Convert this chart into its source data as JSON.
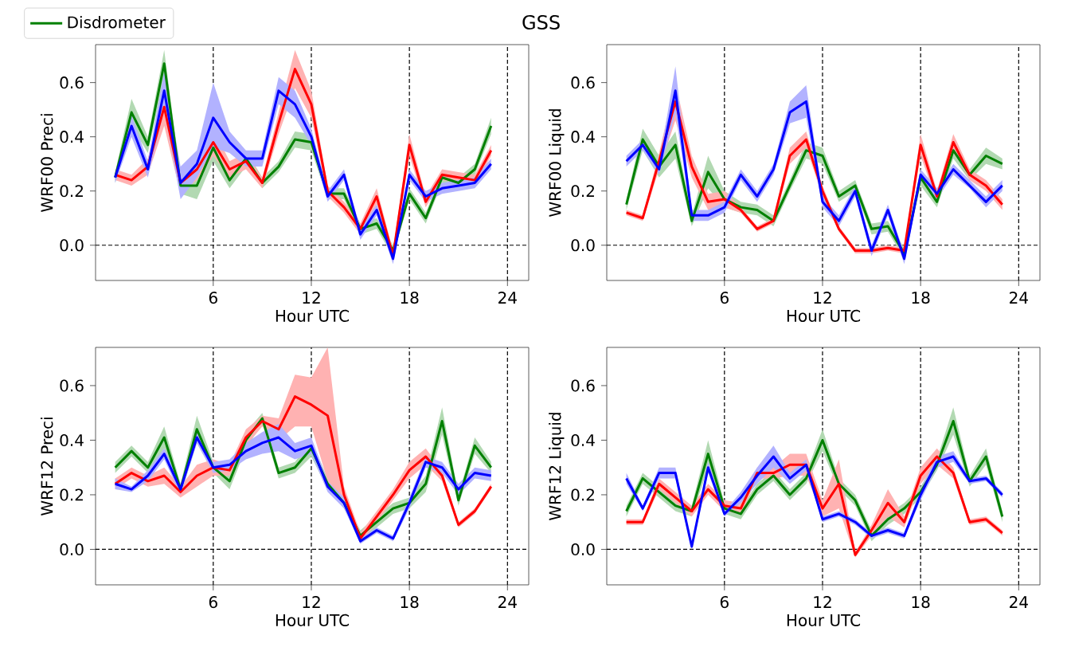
{
  "chart_data": [
    {
      "type": "line",
      "title": "GSS",
      "legend": "top left",
      "xlabel": "Hour UTC",
      "ylabel": "WRF00 Preci",
      "x": [
        0,
        1,
        2,
        3,
        4,
        5,
        6,
        7,
        8,
        9,
        10,
        11,
        12,
        13,
        14,
        15,
        16,
        17,
        18,
        19,
        20,
        21,
        22,
        23
      ],
      "xlim": [
        -1.2,
        25.3
      ],
      "ylim": [
        -0.13,
        0.74
      ],
      "xticks": [
        6,
        12,
        18,
        24
      ],
      "yticks": [
        {
          "value": 0,
          "label": "0.0"
        },
        {
          "value": 0.2,
          "label": "0.2"
        },
        {
          "value": 0.4,
          "label": "0.4"
        },
        {
          "value": 0.6,
          "label": "0.6"
        }
      ],
      "ref_lines": [
        {
          "axis": "x",
          "value": 6,
          "color": "#000000",
          "line_style": "dashed"
        },
        {
          "axis": "x",
          "value": 12,
          "color": "#000000",
          "line_style": "dashed"
        },
        {
          "axis": "x",
          "value": 18,
          "color": "#000000",
          "line_style": "dashed"
        },
        {
          "axis": "x",
          "value": 24,
          "color": "#000000",
          "line_style": "dashed"
        },
        {
          "axis": "y",
          "value": 0,
          "color": "#000000",
          "line_style": "dashed"
        }
      ],
      "series": [
        {
          "name": "Disdrometer",
          "color": "#008000",
          "values": [
            0.25,
            0.49,
            0.37,
            0.67,
            0.22,
            0.22,
            0.36,
            0.24,
            0.32,
            0.23,
            0.29,
            0.39,
            0.38,
            0.19,
            0.19,
            0.06,
            0.08,
            -0.02,
            0.19,
            0.1,
            0.25,
            0.23,
            0.28,
            0.44
          ],
          "lower": [
            0.23,
            0.44,
            0.34,
            0.62,
            0.19,
            0.17,
            0.31,
            0.21,
            0.29,
            0.21,
            0.27,
            0.36,
            0.35,
            0.17,
            0.17,
            0.04,
            0.06,
            -0.04,
            0.17,
            0.08,
            0.23,
            0.21,
            0.26,
            0.41
          ],
          "upper": [
            0.27,
            0.54,
            0.4,
            0.72,
            0.25,
            0.27,
            0.41,
            0.27,
            0.35,
            0.25,
            0.31,
            0.42,
            0.41,
            0.21,
            0.21,
            0.08,
            0.1,
            0.0,
            0.21,
            0.12,
            0.27,
            0.25,
            0.3,
            0.47
          ]
        },
        {
          "color": "#ff0000",
          "values": [
            0.26,
            0.24,
            0.29,
            0.51,
            0.23,
            0.28,
            0.38,
            0.28,
            0.31,
            0.23,
            0.45,
            0.65,
            0.52,
            0.2,
            0.14,
            0.06,
            0.18,
            -0.04,
            0.37,
            0.16,
            0.26,
            0.25,
            0.24,
            0.35
          ],
          "lower": [
            0.24,
            0.22,
            0.26,
            0.44,
            0.19,
            0.24,
            0.33,
            0.25,
            0.28,
            0.21,
            0.41,
            0.58,
            0.47,
            0.18,
            0.12,
            0.04,
            0.15,
            -0.06,
            0.33,
            0.14,
            0.24,
            0.23,
            0.22,
            0.33
          ],
          "upper": [
            0.28,
            0.26,
            0.32,
            0.58,
            0.27,
            0.32,
            0.43,
            0.31,
            0.34,
            0.25,
            0.49,
            0.72,
            0.57,
            0.22,
            0.16,
            0.08,
            0.21,
            -0.02,
            0.41,
            0.18,
            0.28,
            0.27,
            0.26,
            0.37
          ]
        },
        {
          "color": "#0000ff",
          "values": [
            0.25,
            0.44,
            0.28,
            0.57,
            0.23,
            0.3,
            0.47,
            0.38,
            0.32,
            0.32,
            0.57,
            0.52,
            0.4,
            0.18,
            0.26,
            0.04,
            0.13,
            -0.05,
            0.26,
            0.18,
            0.21,
            0.22,
            0.23,
            0.3
          ],
          "lower": [
            0.23,
            0.4,
            0.25,
            0.5,
            0.17,
            0.25,
            0.36,
            0.34,
            0.29,
            0.29,
            0.52,
            0.47,
            0.37,
            0.16,
            0.24,
            0.02,
            0.11,
            -0.07,
            0.24,
            0.16,
            0.19,
            0.2,
            0.21,
            0.28
          ],
          "upper": [
            0.27,
            0.48,
            0.31,
            0.64,
            0.29,
            0.35,
            0.6,
            0.42,
            0.35,
            0.35,
            0.62,
            0.57,
            0.43,
            0.2,
            0.28,
            0.06,
            0.15,
            -0.03,
            0.28,
            0.2,
            0.23,
            0.24,
            0.25,
            0.32
          ]
        }
      ]
    },
    {
      "type": "line",
      "xlabel": "Hour UTC",
      "ylabel": "WRF00 Liquid",
      "x": [
        0,
        1,
        2,
        3,
        4,
        5,
        6,
        7,
        8,
        9,
        10,
        11,
        12,
        13,
        14,
        15,
        16,
        17,
        18,
        19,
        20,
        21,
        22,
        23
      ],
      "xlim": [
        -1.2,
        25.3
      ],
      "ylim": [
        -0.13,
        0.74
      ],
      "xticks": [
        6,
        12,
        18,
        24
      ],
      "yticks": [
        {
          "value": 0,
          "label": "0.0"
        },
        {
          "value": 0.2,
          "label": "0.2"
        },
        {
          "value": 0.4,
          "label": "0.4"
        },
        {
          "value": 0.6,
          "label": "0.6"
        }
      ],
      "ref_lines": [
        {
          "axis": "x",
          "value": 6,
          "color": "#000000",
          "line_style": "dashed"
        },
        {
          "axis": "x",
          "value": 12,
          "color": "#000000",
          "line_style": "dashed"
        },
        {
          "axis": "x",
          "value": 18,
          "color": "#000000",
          "line_style": "dashed"
        },
        {
          "axis": "x",
          "value": 24,
          "color": "#000000",
          "line_style": "dashed"
        },
        {
          "axis": "y",
          "value": 0,
          "color": "#000000",
          "line_style": "dashed"
        }
      ],
      "series": [
        {
          "color": "#008000",
          "values": [
            0.15,
            0.39,
            0.29,
            0.37,
            0.09,
            0.27,
            0.17,
            0.14,
            0.13,
            0.09,
            0.22,
            0.35,
            0.33,
            0.18,
            0.22,
            0.06,
            0.07,
            -0.03,
            0.25,
            0.16,
            0.35,
            0.26,
            0.33,
            0.3
          ],
          "lower": [
            0.13,
            0.35,
            0.25,
            0.32,
            0.07,
            0.21,
            0.14,
            0.12,
            0.11,
            0.07,
            0.2,
            0.32,
            0.3,
            0.16,
            0.2,
            0.04,
            0.05,
            -0.05,
            0.22,
            0.14,
            0.32,
            0.24,
            0.3,
            0.28
          ],
          "upper": [
            0.17,
            0.43,
            0.33,
            0.42,
            0.11,
            0.33,
            0.2,
            0.16,
            0.15,
            0.11,
            0.24,
            0.38,
            0.36,
            0.2,
            0.24,
            0.08,
            0.09,
            -0.01,
            0.28,
            0.18,
            0.39,
            0.28,
            0.36,
            0.32
          ]
        },
        {
          "color": "#ff0000",
          "values": [
            0.12,
            0.1,
            0.31,
            0.53,
            0.29,
            0.16,
            0.17,
            0.13,
            0.06,
            0.09,
            0.33,
            0.39,
            0.2,
            0.06,
            -0.02,
            -0.02,
            -0.01,
            -0.02,
            0.37,
            0.18,
            0.38,
            0.26,
            0.22,
            0.15
          ],
          "lower": [
            0.11,
            0.09,
            0.28,
            0.46,
            0.25,
            0.13,
            0.14,
            0.12,
            0.05,
            0.08,
            0.3,
            0.36,
            0.18,
            0.05,
            -0.03,
            -0.03,
            -0.02,
            -0.03,
            0.33,
            0.16,
            0.35,
            0.24,
            0.2,
            0.13
          ],
          "upper": [
            0.13,
            0.11,
            0.34,
            0.6,
            0.33,
            0.19,
            0.2,
            0.14,
            0.07,
            0.1,
            0.36,
            0.42,
            0.22,
            0.07,
            -0.01,
            -0.01,
            0.0,
            -0.01,
            0.41,
            0.2,
            0.41,
            0.28,
            0.24,
            0.17
          ]
        },
        {
          "color": "#0000ff",
          "values": [
            0.31,
            0.37,
            0.28,
            0.57,
            0.11,
            0.11,
            0.14,
            0.26,
            0.18,
            0.28,
            0.49,
            0.53,
            0.16,
            0.09,
            0.2,
            -0.02,
            0.13,
            -0.05,
            0.26,
            0.19,
            0.28,
            0.22,
            0.16,
            0.22
          ],
          "lower": [
            0.29,
            0.35,
            0.26,
            0.49,
            0.09,
            0.09,
            0.12,
            0.24,
            0.16,
            0.26,
            0.45,
            0.47,
            0.14,
            0.07,
            0.18,
            -0.04,
            0.11,
            -0.07,
            0.24,
            0.17,
            0.26,
            0.21,
            0.14,
            0.2
          ],
          "upper": [
            0.33,
            0.39,
            0.3,
            0.66,
            0.13,
            0.13,
            0.16,
            0.28,
            0.2,
            0.3,
            0.53,
            0.59,
            0.18,
            0.11,
            0.22,
            0.0,
            0.15,
            -0.03,
            0.28,
            0.21,
            0.3,
            0.24,
            0.18,
            0.24
          ]
        }
      ]
    },
    {
      "type": "line",
      "xlabel": "Hour UTC",
      "ylabel": "WRF12 Preci",
      "x": [
        0,
        1,
        2,
        3,
        4,
        5,
        6,
        7,
        8,
        9,
        10,
        11,
        12,
        13,
        14,
        15,
        16,
        17,
        18,
        19,
        20,
        21,
        22,
        23
      ],
      "xlim": [
        -1.2,
        25.3
      ],
      "ylim": [
        -0.13,
        0.74
      ],
      "xticks": [
        6,
        12,
        18,
        24
      ],
      "yticks": [
        {
          "value": 0,
          "label": "0.0"
        },
        {
          "value": 0.2,
          "label": "0.2"
        },
        {
          "value": 0.4,
          "label": "0.4"
        },
        {
          "value": 0.6,
          "label": "0.6"
        }
      ],
      "ref_lines": [
        {
          "axis": "x",
          "value": 6,
          "color": "#000000",
          "line_style": "dashed"
        },
        {
          "axis": "x",
          "value": 12,
          "color": "#000000",
          "line_style": "dashed"
        },
        {
          "axis": "x",
          "value": 18,
          "color": "#000000",
          "line_style": "dashed"
        },
        {
          "axis": "x",
          "value": 24,
          "color": "#000000",
          "line_style": "dashed"
        },
        {
          "axis": "y",
          "value": 0,
          "color": "#000000",
          "line_style": "dashed"
        }
      ],
      "series": [
        {
          "color": "#008000",
          "values": [
            0.3,
            0.36,
            0.3,
            0.41,
            0.22,
            0.44,
            0.3,
            0.25,
            0.4,
            0.48,
            0.28,
            0.3,
            0.37,
            0.24,
            0.17,
            0.05,
            0.1,
            0.15,
            0.17,
            0.24,
            0.47,
            0.18,
            0.38,
            0.3
          ],
          "lower": [
            0.28,
            0.34,
            0.28,
            0.37,
            0.2,
            0.39,
            0.28,
            0.22,
            0.37,
            0.46,
            0.26,
            0.28,
            0.34,
            0.22,
            0.15,
            0.03,
            0.08,
            0.13,
            0.15,
            0.21,
            0.42,
            0.16,
            0.35,
            0.28
          ],
          "upper": [
            0.32,
            0.38,
            0.32,
            0.45,
            0.24,
            0.49,
            0.32,
            0.28,
            0.43,
            0.5,
            0.3,
            0.32,
            0.4,
            0.26,
            0.19,
            0.07,
            0.12,
            0.17,
            0.19,
            0.27,
            0.52,
            0.2,
            0.41,
            0.32
          ]
        },
        {
          "color": "#ff0000",
          "values": [
            0.24,
            0.28,
            0.25,
            0.27,
            0.21,
            0.27,
            0.3,
            0.29,
            0.41,
            0.47,
            0.44,
            0.56,
            0.53,
            0.49,
            0.2,
            0.04,
            0.12,
            0.2,
            0.29,
            0.34,
            0.27,
            0.09,
            0.14,
            0.23
          ],
          "lower": [
            0.22,
            0.26,
            0.23,
            0.24,
            0.19,
            0.23,
            0.27,
            0.27,
            0.38,
            0.45,
            0.4,
            0.45,
            0.45,
            0.25,
            0.17,
            0.02,
            0.1,
            0.18,
            0.26,
            0.31,
            0.25,
            0.08,
            0.13,
            0.22
          ],
          "upper": [
            0.26,
            0.3,
            0.27,
            0.3,
            0.23,
            0.31,
            0.33,
            0.31,
            0.44,
            0.49,
            0.48,
            0.64,
            0.63,
            0.74,
            0.23,
            0.06,
            0.14,
            0.22,
            0.32,
            0.37,
            0.29,
            0.1,
            0.15,
            0.24
          ]
        },
        {
          "color": "#0000ff",
          "values": [
            0.24,
            0.22,
            0.27,
            0.35,
            0.22,
            0.41,
            0.3,
            0.31,
            0.36,
            0.39,
            0.41,
            0.36,
            0.38,
            0.23,
            0.17,
            0.03,
            0.07,
            0.04,
            0.17,
            0.32,
            0.3,
            0.22,
            0.28,
            0.27
          ],
          "lower": [
            0.22,
            0.21,
            0.25,
            0.33,
            0.2,
            0.39,
            0.28,
            0.29,
            0.33,
            0.35,
            0.36,
            0.33,
            0.35,
            0.21,
            0.15,
            0.02,
            0.06,
            0.03,
            0.15,
            0.3,
            0.28,
            0.2,
            0.26,
            0.25
          ],
          "upper": [
            0.26,
            0.23,
            0.29,
            0.37,
            0.24,
            0.43,
            0.32,
            0.33,
            0.39,
            0.43,
            0.46,
            0.39,
            0.41,
            0.25,
            0.19,
            0.04,
            0.08,
            0.05,
            0.19,
            0.34,
            0.32,
            0.24,
            0.3,
            0.29
          ]
        }
      ]
    },
    {
      "type": "line",
      "xlabel": "Hour UTC",
      "ylabel": "WRF12 Liquid",
      "x": [
        0,
        1,
        2,
        3,
        4,
        5,
        6,
        7,
        8,
        9,
        10,
        11,
        12,
        13,
        14,
        15,
        16,
        17,
        18,
        19,
        20,
        21,
        22,
        23
      ],
      "xlim": [
        -1.2,
        25.3
      ],
      "ylim": [
        -0.13,
        0.74
      ],
      "xticks": [
        6,
        12,
        18,
        24
      ],
      "yticks": [
        {
          "value": 0,
          "label": "0.0"
        },
        {
          "value": 0.2,
          "label": "0.2"
        },
        {
          "value": 0.4,
          "label": "0.4"
        },
        {
          "value": 0.6,
          "label": "0.6"
        }
      ],
      "ref_lines": [
        {
          "axis": "x",
          "value": 6,
          "color": "#000000",
          "line_style": "dashed"
        },
        {
          "axis": "x",
          "value": 12,
          "color": "#000000",
          "line_style": "dashed"
        },
        {
          "axis": "x",
          "value": 18,
          "color": "#000000",
          "line_style": "dashed"
        },
        {
          "axis": "x",
          "value": 24,
          "color": "#000000",
          "line_style": "dashed"
        },
        {
          "axis": "y",
          "value": 0,
          "color": "#000000",
          "line_style": "dashed"
        }
      ],
      "series": [
        {
          "color": "#008000",
          "values": [
            0.14,
            0.26,
            0.21,
            0.16,
            0.14,
            0.35,
            0.15,
            0.13,
            0.22,
            0.27,
            0.2,
            0.26,
            0.4,
            0.24,
            0.18,
            0.05,
            0.11,
            0.15,
            0.21,
            0.31,
            0.47,
            0.25,
            0.34,
            0.12
          ],
          "lower": [
            0.12,
            0.24,
            0.19,
            0.14,
            0.12,
            0.3,
            0.13,
            0.11,
            0.2,
            0.25,
            0.18,
            0.24,
            0.36,
            0.22,
            0.16,
            0.03,
            0.09,
            0.13,
            0.19,
            0.29,
            0.42,
            0.23,
            0.31,
            0.1
          ],
          "upper": [
            0.16,
            0.28,
            0.23,
            0.18,
            0.16,
            0.4,
            0.17,
            0.15,
            0.24,
            0.29,
            0.22,
            0.28,
            0.44,
            0.26,
            0.2,
            0.07,
            0.13,
            0.17,
            0.23,
            0.33,
            0.52,
            0.27,
            0.37,
            0.14
          ]
        },
        {
          "color": "#ff0000",
          "values": [
            0.1,
            0.1,
            0.24,
            0.19,
            0.14,
            0.22,
            0.16,
            0.15,
            0.28,
            0.28,
            0.31,
            0.31,
            0.15,
            0.24,
            -0.02,
            0.07,
            0.17,
            0.1,
            0.27,
            0.34,
            0.28,
            0.1,
            0.11,
            0.06
          ],
          "lower": [
            0.09,
            0.09,
            0.22,
            0.17,
            0.12,
            0.2,
            0.14,
            0.13,
            0.26,
            0.26,
            0.27,
            0.27,
            0.12,
            0.15,
            -0.03,
            0.05,
            0.12,
            0.08,
            0.24,
            0.31,
            0.26,
            0.09,
            0.1,
            0.05
          ],
          "upper": [
            0.11,
            0.11,
            0.26,
            0.21,
            0.16,
            0.24,
            0.18,
            0.17,
            0.3,
            0.3,
            0.35,
            0.35,
            0.18,
            0.33,
            -0.01,
            0.09,
            0.22,
            0.12,
            0.3,
            0.37,
            0.3,
            0.11,
            0.12,
            0.07
          ]
        },
        {
          "color": "#0000ff",
          "values": [
            0.26,
            0.15,
            0.28,
            0.28,
            0.01,
            0.3,
            0.13,
            0.19,
            0.27,
            0.34,
            0.26,
            0.31,
            0.11,
            0.13,
            0.1,
            0.05,
            0.07,
            0.05,
            0.2,
            0.32,
            0.34,
            0.25,
            0.26,
            0.2
          ],
          "lower": [
            0.24,
            0.14,
            0.26,
            0.26,
            0.0,
            0.28,
            0.12,
            0.17,
            0.24,
            0.3,
            0.24,
            0.29,
            0.1,
            0.12,
            0.09,
            0.04,
            0.06,
            0.04,
            0.18,
            0.3,
            0.32,
            0.24,
            0.25,
            0.19
          ],
          "upper": [
            0.28,
            0.16,
            0.3,
            0.3,
            0.02,
            0.32,
            0.14,
            0.21,
            0.3,
            0.38,
            0.28,
            0.33,
            0.12,
            0.14,
            0.11,
            0.06,
            0.08,
            0.06,
            0.22,
            0.34,
            0.36,
            0.26,
            0.27,
            0.21
          ]
        }
      ]
    }
  ]
}
